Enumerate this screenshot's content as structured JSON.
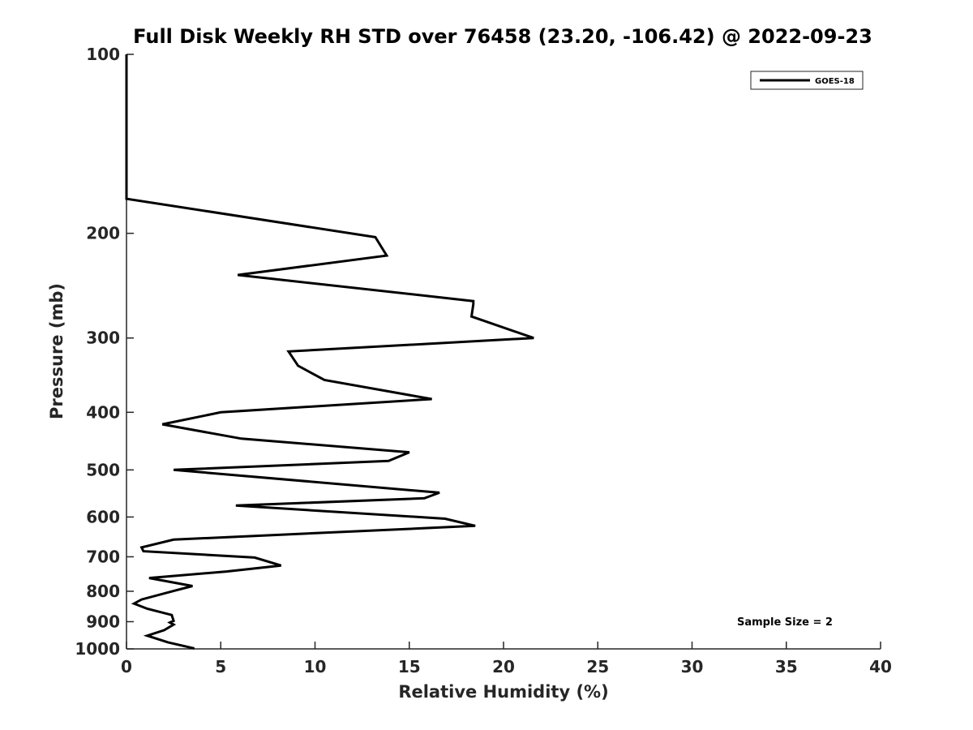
{
  "chart_data": {
    "type": "line",
    "title": "Full Disk Weekly RH STD over 76458 (23.20, -106.42) @ 2022-09-23",
    "xlabel": "Relative Humidity (%)",
    "ylabel": "Pressure (mb)",
    "xlim": [
      0,
      40
    ],
    "ylim": [
      100,
      1000
    ],
    "y_scale": "log",
    "y_reversed": true,
    "grid": false,
    "legend_position": "top-right",
    "x_ticks": [
      0,
      5,
      10,
      15,
      20,
      25,
      30,
      35,
      40
    ],
    "x_tick_labels": [
      "0",
      "5",
      "10",
      "15",
      "20",
      "25",
      "30",
      "35",
      "40"
    ],
    "y_ticks": [
      100,
      200,
      300,
      400,
      500,
      600,
      700,
      800,
      900,
      1000
    ],
    "y_tick_labels": [
      "100",
      "200",
      "300",
      "400",
      "500",
      "600",
      "700",
      "800",
      "900",
      "1000"
    ],
    "series": [
      {
        "name": "GOES-18",
        "color": "#000000",
        "points": [
          [
            0,
            100
          ],
          [
            0,
            125
          ],
          [
            0,
            150
          ],
          [
            0,
            175
          ],
          [
            13.2,
            203
          ],
          [
            13.8,
            218
          ],
          [
            5.9,
            235
          ],
          [
            18.4,
            260
          ],
          [
            18.4,
            263
          ],
          [
            18.3,
            276
          ],
          [
            21.6,
            300
          ],
          [
            8.6,
            316
          ],
          [
            9.1,
            334
          ],
          [
            10.5,
            353
          ],
          [
            16.2,
            380
          ],
          [
            5.0,
            400
          ],
          [
            1.9,
            419
          ],
          [
            6.1,
            443
          ],
          [
            15.0,
            467
          ],
          [
            13.9,
            483
          ],
          [
            2.5,
            500
          ],
          [
            16.6,
            546
          ],
          [
            15.8,
            558
          ],
          [
            5.8,
            574
          ],
          [
            16.9,
            604
          ],
          [
            18.5,
            621
          ],
          [
            2.5,
            655
          ],
          [
            0.8,
            675
          ],
          [
            0.9,
            685
          ],
          [
            6.8,
            702
          ],
          [
            8.2,
            724
          ],
          [
            5.3,
            741
          ],
          [
            1.2,
            760
          ],
          [
            3.5,
            784
          ],
          [
            2.5,
            799
          ],
          [
            0.8,
            826
          ],
          [
            0.4,
            839
          ],
          [
            1.1,
            856
          ],
          [
            2.4,
            877
          ],
          [
            2.5,
            897
          ],
          [
            2.3,
            903
          ],
          [
            2.5,
            910
          ],
          [
            2.0,
            930
          ],
          [
            1.1,
            950
          ],
          [
            2.2,
            975
          ],
          [
            3.6,
            998
          ]
        ]
      }
    ],
    "annotations": [
      "Sample Size = 2"
    ]
  }
}
